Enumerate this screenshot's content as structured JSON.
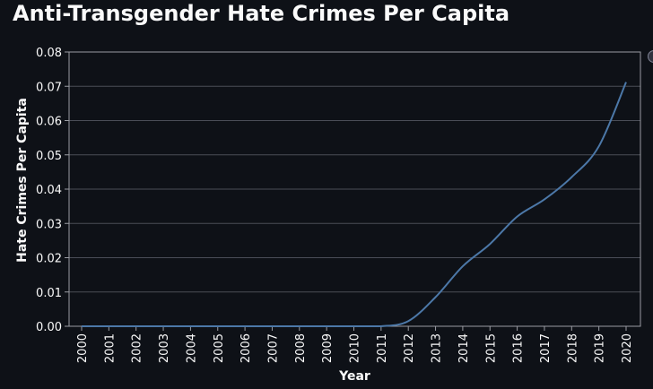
{
  "title": "Anti-Transgender Hate Crimes Per Capita",
  "colors": {
    "background": "#0e1117",
    "grid": "#4a4d57",
    "axis": "#9a9ca3",
    "text": "#fafafa",
    "series": "#4c78a8"
  },
  "chart_data": {
    "type": "line",
    "title": "Anti-Transgender Hate Crimes Per Capita",
    "xlabel": "Year",
    "ylabel": "Hate Crimes Per Capita",
    "x": [
      "2000",
      "2001",
      "2002",
      "2003",
      "2004",
      "2005",
      "2006",
      "2007",
      "2008",
      "2009",
      "2010",
      "2011",
      "2012",
      "2013",
      "2014",
      "2015",
      "2016",
      "2017",
      "2018",
      "2019",
      "2020"
    ],
    "series": [
      {
        "name": "",
        "values": [
          0,
          0,
          0,
          0,
          0,
          0,
          0,
          0,
          0,
          0,
          0,
          0,
          0.0015,
          0.0085,
          0.0175,
          0.024,
          0.032,
          0.037,
          0.0435,
          0.0525,
          0.0712
        ]
      }
    ],
    "ylim": [
      0,
      0.08
    ],
    "yticks": [
      "0.00",
      "0.01",
      "0.02",
      "0.03",
      "0.04",
      "0.05",
      "0.06",
      "0.07",
      "0.08"
    ],
    "grid": true,
    "x_tick_rotation": "vertical"
  }
}
